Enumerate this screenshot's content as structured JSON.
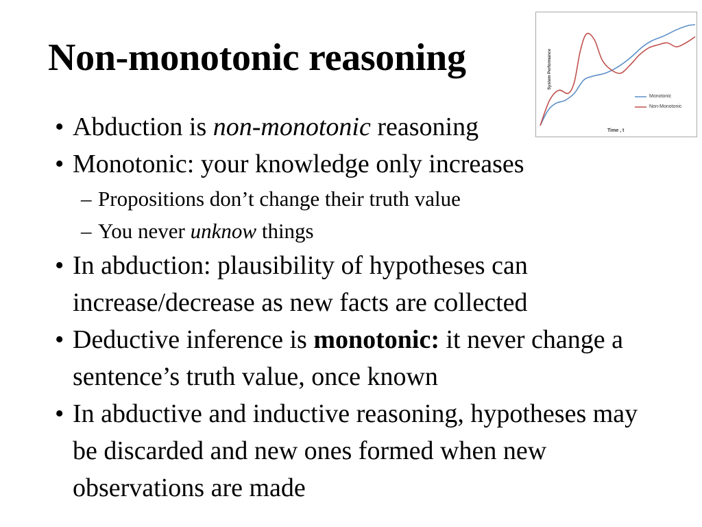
{
  "slide": {
    "title": "Non-monotonic reasoning",
    "bullets": [
      {
        "pre": "Abduction is ",
        "em": "non-monotonic",
        "post": " reasoning"
      },
      {
        "text": "Monotonic: your knowledge only increases"
      },
      {
        "sub": true,
        "text": "Propositions don’t change their truth value"
      },
      {
        "sub": true,
        "pre": "You never ",
        "em": "unknow",
        "post": " things"
      },
      {
        "text": "In abduction: plausibility of hypotheses can increase/decrease as new facts are collected"
      },
      {
        "pre": "Deductive inference is ",
        "strong": "monotonic:",
        "post": " it never change a sentence’s truth value, once known"
      },
      {
        "text": "In abductive and inductive reasoning, hypotheses may be discarded and new ones formed when new observations are made"
      }
    ]
  },
  "chart_data": {
    "type": "line",
    "ylabel": "System Performance",
    "xlabel": "Time , t",
    "legend_position": "bottom-right",
    "series": [
      {
        "name": "Monotonic",
        "color": "#5b8fc7",
        "x": [
          0,
          0.05,
          0.1,
          0.16,
          0.22,
          0.28,
          0.34,
          0.42,
          0.5,
          0.58,
          0.66,
          0.72,
          0.8,
          0.88,
          0.95,
          1.0
        ],
        "y": [
          0,
          0.15,
          0.22,
          0.25,
          0.32,
          0.45,
          0.49,
          0.52,
          0.58,
          0.67,
          0.78,
          0.84,
          0.89,
          0.95,
          0.99,
          1.0
        ]
      },
      {
        "name": "Non-Monotonic",
        "color": "#c0504d",
        "x": [
          0,
          0.06,
          0.12,
          0.18,
          0.22,
          0.26,
          0.3,
          0.35,
          0.4,
          0.46,
          0.52,
          0.58,
          0.64,
          0.7,
          0.76,
          0.82,
          0.88,
          0.94,
          1.0
        ],
        "y": [
          0,
          0.25,
          0.35,
          0.32,
          0.43,
          0.75,
          0.91,
          0.85,
          0.65,
          0.55,
          0.52,
          0.6,
          0.7,
          0.77,
          0.8,
          0.82,
          0.78,
          0.82,
          0.88
        ]
      }
    ]
  }
}
